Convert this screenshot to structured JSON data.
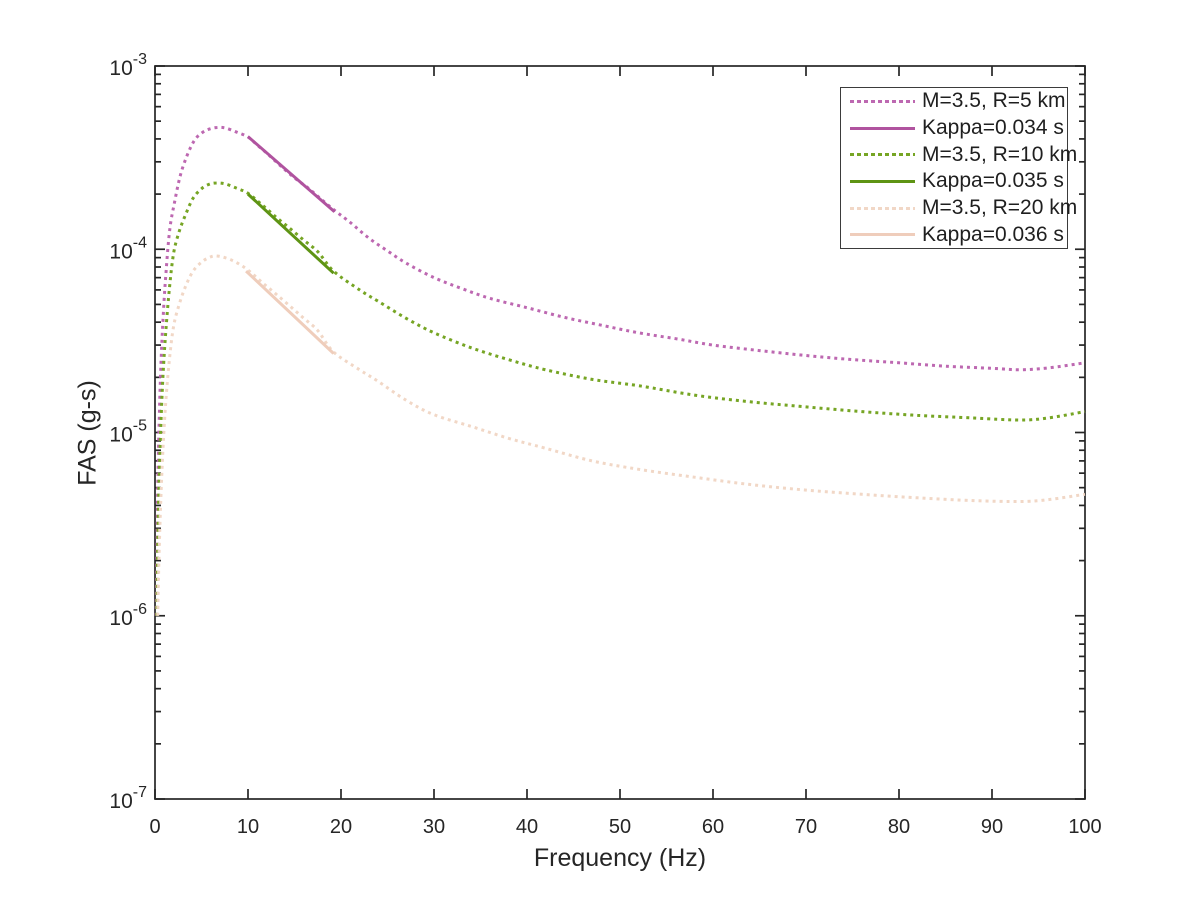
{
  "figure": {
    "background": "#ffffff",
    "axis_color": "#262626",
    "text_color": "#262626"
  },
  "chart_data": {
    "type": "line",
    "title": "",
    "xlabel": "Frequency (Hz)",
    "ylabel": "FAS (g-s)",
    "grid": false,
    "legend_location": "northeast",
    "x_axis": {
      "scale": "linear",
      "min": 0,
      "max": 100,
      "ticks": [
        0,
        10,
        20,
        30,
        40,
        50,
        60,
        70,
        80,
        90,
        100
      ]
    },
    "y_axis": {
      "scale": "log",
      "min": 1e-07,
      "max": 0.001,
      "tick_exponents": [
        -3,
        -4,
        -5,
        -6,
        -7
      ]
    },
    "series": [
      {
        "id": "m35-r5km",
        "name": "M=3.5, R=5 km",
        "style": "dotted",
        "color": "#BD68B1",
        "width": 3,
        "points": [
          [
            0.13,
            1e-06
          ],
          [
            0.2,
            2.3e-06
          ],
          [
            0.3,
            5.2e-06
          ],
          [
            0.45,
            1.15e-05
          ],
          [
            0.65,
            2.4e-05
          ],
          [
            0.9,
            4.5e-05
          ],
          [
            1.2,
            7.7e-05
          ],
          [
            1.6,
            0.00013
          ],
          [
            2.1,
            0.00018
          ],
          [
            2.7,
            0.00025
          ],
          [
            3.4,
            0.00032
          ],
          [
            4.2,
            0.00039
          ],
          [
            5.0,
            0.00043
          ],
          [
            5.8,
            0.000452
          ],
          [
            6.7,
            0.000462
          ],
          [
            7.6,
            0.000458
          ],
          [
            8.8,
            0.000435
          ],
          [
            10,
            0.00041
          ],
          [
            11,
            0.00037
          ],
          [
            12,
            0.000335
          ],
          [
            13.5,
            0.000285
          ],
          [
            15,
            0.000245
          ],
          [
            16.5,
            0.000215
          ],
          [
            18,
            0.000185
          ],
          [
            19.5,
            0.00016
          ],
          [
            21,
            0.00014
          ],
          [
            23,
            0.000115
          ],
          [
            25,
            9.8e-05
          ],
          [
            27,
            8.4e-05
          ],
          [
            30,
            7e-05
          ],
          [
            33,
            6.1e-05
          ],
          [
            36,
            5.4e-05
          ],
          [
            40,
            4.8e-05
          ],
          [
            44,
            4.25e-05
          ],
          [
            48,
            3.85e-05
          ],
          [
            52,
            3.5e-05
          ],
          [
            56,
            3.25e-05
          ],
          [
            60,
            3e-05
          ],
          [
            65,
            2.8e-05
          ],
          [
            70,
            2.63e-05
          ],
          [
            75,
            2.5e-05
          ],
          [
            80,
            2.4e-05
          ],
          [
            85,
            2.3e-05
          ],
          [
            90,
            2.24e-05
          ],
          [
            93,
            2.2e-05
          ],
          [
            96,
            2.25e-05
          ],
          [
            100,
            2.4e-05
          ]
        ]
      },
      {
        "id": "kappa-0034",
        "name": "Kappa=0.034 s",
        "style": "solid",
        "color": "#B0539F",
        "width": 3,
        "points": [
          [
            10,
            0.000412
          ],
          [
            19.3,
            0.00016
          ]
        ]
      },
      {
        "id": "m35-r10km",
        "name": "M=3.5, R=10 km",
        "style": "dotted",
        "color": "#76A524",
        "width": 3,
        "points": [
          [
            0.19,
            1e-06
          ],
          [
            0.28,
            2.2e-06
          ],
          [
            0.42,
            5e-06
          ],
          [
            0.6,
            1e-05
          ],
          [
            0.85,
            2e-05
          ],
          [
            1.15,
            3.5e-05
          ],
          [
            1.55,
            6.1e-05
          ],
          [
            2.0,
            9.5e-05
          ],
          [
            2.6,
            0.000125
          ],
          [
            3.3,
            0.000155
          ],
          [
            4.1,
            0.00019
          ],
          [
            5.0,
            0.000214
          ],
          [
            5.8,
            0.000226
          ],
          [
            6.6,
            0.00023
          ],
          [
            7.6,
            0.000227
          ],
          [
            8.8,
            0.000215
          ],
          [
            10,
            0.000202
          ],
          [
            11.5,
            0.000175
          ],
          [
            13,
            0.00015
          ],
          [
            14.5,
            0.00013
          ],
          [
            16,
            0.000112
          ],
          [
            17.5,
            9.7e-05
          ],
          [
            19.2,
            7.6e-05
          ],
          [
            22,
            6e-05
          ],
          [
            24,
            5.2e-05
          ],
          [
            27,
            4.2e-05
          ],
          [
            30,
            3.5e-05
          ],
          [
            34,
            2.9e-05
          ],
          [
            38,
            2.5e-05
          ],
          [
            42,
            2.2e-05
          ],
          [
            47,
            1.95e-05
          ],
          [
            52,
            1.8e-05
          ],
          [
            58,
            1.6e-05
          ],
          [
            64,
            1.47e-05
          ],
          [
            70,
            1.38e-05
          ],
          [
            76,
            1.3e-05
          ],
          [
            82,
            1.24e-05
          ],
          [
            88,
            1.2e-05
          ],
          [
            93,
            1.17e-05
          ],
          [
            96,
            1.2e-05
          ],
          [
            100,
            1.3e-05
          ]
        ]
      },
      {
        "id": "kappa-0035",
        "name": "Kappa=0.035 s",
        "style": "solid",
        "color": "#5E9414",
        "width": 3,
        "points": [
          [
            10,
            0.0002
          ],
          [
            19.2,
            7.4e-05
          ]
        ]
      },
      {
        "id": "m35-r20km",
        "name": "M=3.5, R=20 km",
        "style": "dotted",
        "color": "#F1D7C6",
        "width": 3,
        "points": [
          [
            0.29,
            1e-06
          ],
          [
            0.42,
            2e-06
          ],
          [
            0.6,
            4e-06
          ],
          [
            0.85,
            8e-06
          ],
          [
            1.15,
            1.45e-05
          ],
          [
            1.55,
            2.5e-05
          ],
          [
            2.0,
            3.8e-05
          ],
          [
            2.6,
            5e-05
          ],
          [
            3.3,
            6.3e-05
          ],
          [
            4.1,
            7.6e-05
          ],
          [
            5.0,
            8.5e-05
          ],
          [
            5.8,
            9e-05
          ],
          [
            6.5,
            9.2e-05
          ],
          [
            7.5,
            9e-05
          ],
          [
            8.7,
            8.5e-05
          ],
          [
            10,
            7.7e-05
          ],
          [
            11.5,
            6.6e-05
          ],
          [
            13,
            5.7e-05
          ],
          [
            14.5,
            4.9e-05
          ],
          [
            16,
            4.2e-05
          ],
          [
            17.5,
            3.6e-05
          ],
          [
            19.2,
            2.75e-05
          ],
          [
            22,
            2.2e-05
          ],
          [
            24,
            1.9e-05
          ],
          [
            27,
            1.5e-05
          ],
          [
            30,
            1.25e-05
          ],
          [
            34,
            1.08e-05
          ],
          [
            38,
            9.3e-06
          ],
          [
            42,
            8.2e-06
          ],
          [
            47,
            7e-06
          ],
          [
            52,
            6.3e-06
          ],
          [
            58,
            5.7e-06
          ],
          [
            64,
            5.2e-06
          ],
          [
            70,
            4.85e-06
          ],
          [
            76,
            4.6e-06
          ],
          [
            82,
            4.4e-06
          ],
          [
            88,
            4.25e-06
          ],
          [
            93,
            4.2e-06
          ],
          [
            96,
            4.3e-06
          ],
          [
            100,
            4.6e-06
          ]
        ]
      },
      {
        "id": "kappa-0036",
        "name": "Kappa=0.036 s",
        "style": "solid",
        "color": "#EFCDBB",
        "width": 3,
        "points": [
          [
            9.8,
            7.6e-05
          ],
          [
            19.2,
            2.7e-05
          ]
        ]
      }
    ]
  }
}
